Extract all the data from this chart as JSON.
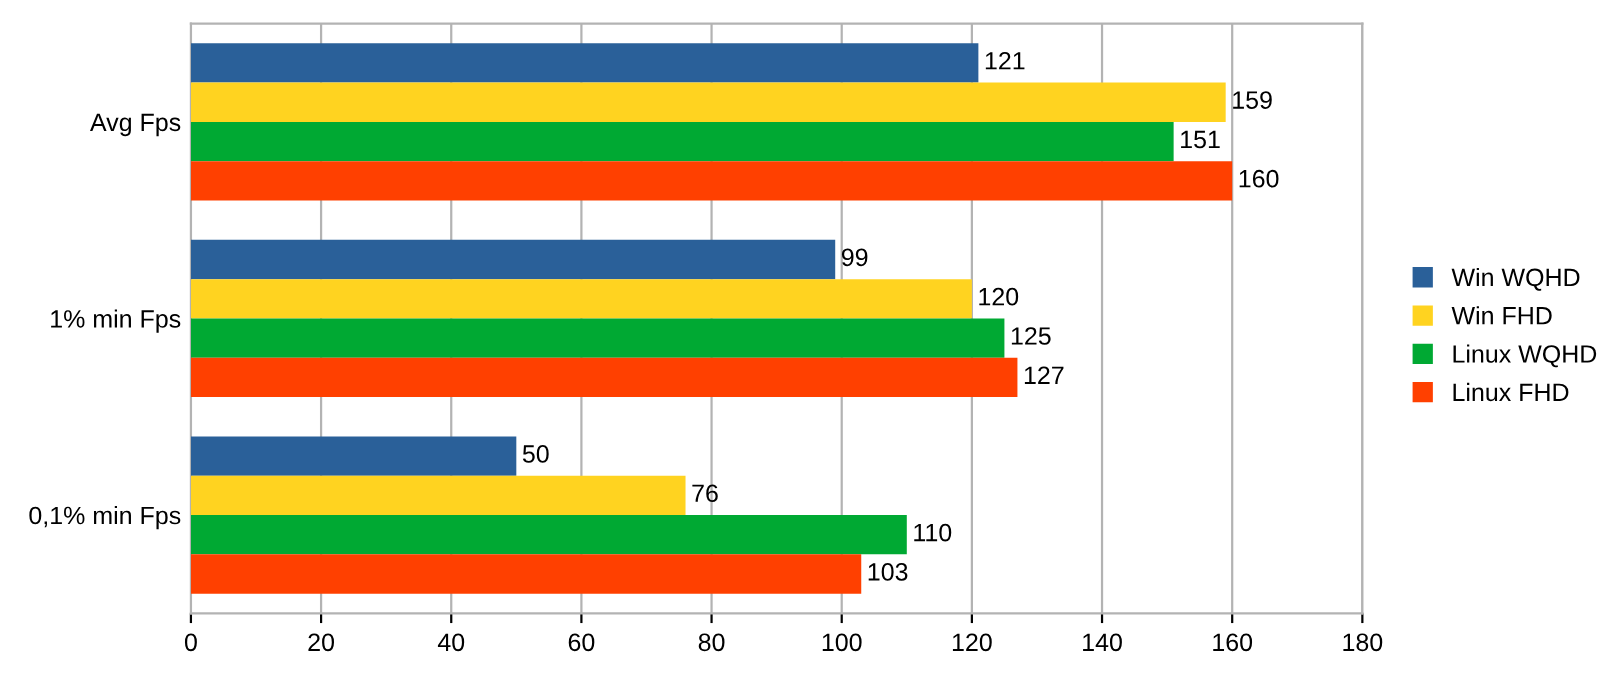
{
  "chart_data": {
    "type": "bar",
    "orientation": "horizontal",
    "categories": [
      "Avg Fps",
      "1% min Fps",
      "0,1% min Fps"
    ],
    "series": [
      {
        "name": "Win WQHD",
        "color": "#2a6099",
        "values": [
          121,
          99,
          50
        ]
      },
      {
        "name": "Win FHD",
        "color": "#ffd320",
        "values": [
          159,
          120,
          76
        ]
      },
      {
        "name": "Linux WQHD",
        "color": "#00a933",
        "values": [
          151,
          125,
          110
        ]
      },
      {
        "name": "Linux FHD",
        "color": "#ff4000",
        "values": [
          160,
          127,
          103
        ]
      }
    ],
    "xlim": [
      0,
      180
    ],
    "xticks": [
      0,
      20,
      40,
      60,
      80,
      100,
      120,
      140,
      160,
      180
    ],
    "grid": "x",
    "legend": "right",
    "data_labels": true
  }
}
